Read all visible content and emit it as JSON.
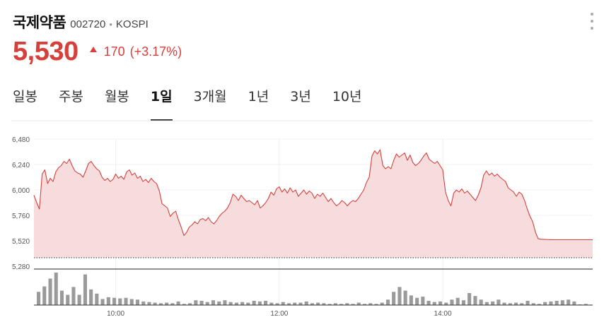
{
  "header": {
    "name": "국제약품",
    "code": "002720",
    "separator": "•",
    "exchange": "KOSPI"
  },
  "quote": {
    "price": "5,530",
    "direction": "up",
    "change": "170",
    "change_percent": "(+3.17%)",
    "up_color": "#d6403b"
  },
  "tabs": [
    {
      "label": "일봉",
      "active": false
    },
    {
      "label": "주봉",
      "active": false
    },
    {
      "label": "월봉",
      "active": false
    },
    {
      "label": "1일",
      "active": true
    },
    {
      "label": "3개월",
      "active": false
    },
    {
      "label": "1년",
      "active": false
    },
    {
      "label": "3년",
      "active": false
    },
    {
      "label": "10년",
      "active": false
    }
  ],
  "chart_data": {
    "type": "area",
    "y_ticks": [
      "6,480",
      "6,240",
      "6,000",
      "5,760",
      "5,520",
      "5,280"
    ],
    "ylim": [
      5280,
      6480
    ],
    "x_ticks": [
      {
        "label": "10:00",
        "minute": 60
      },
      {
        "label": "12:00",
        "minute": 180
      },
      {
        "label": "14:00",
        "minute": 300
      }
    ],
    "prev_close": 5360,
    "x_range_minutes": [
      0,
      410
    ],
    "series": [
      {
        "points": [
          [
            0,
            5950
          ],
          [
            2,
            5880
          ],
          [
            4,
            5820
          ],
          [
            6,
            6150
          ],
          [
            8,
            6190
          ],
          [
            10,
            6060
          ],
          [
            12,
            6110
          ],
          [
            14,
            6080
          ],
          [
            16,
            6170
          ],
          [
            18,
            6210
          ],
          [
            20,
            6230
          ],
          [
            22,
            6270
          ],
          [
            24,
            6250
          ],
          [
            26,
            6290
          ],
          [
            28,
            6230
          ],
          [
            30,
            6180
          ],
          [
            32,
            6160
          ],
          [
            34,
            6150
          ],
          [
            36,
            6120
          ],
          [
            38,
            6180
          ],
          [
            40,
            6250
          ],
          [
            42,
            6270
          ],
          [
            44,
            6230
          ],
          [
            46,
            6200
          ],
          [
            48,
            6180
          ],
          [
            50,
            6120
          ],
          [
            52,
            6090
          ],
          [
            54,
            6110
          ],
          [
            56,
            6080
          ],
          [
            58,
            6100
          ],
          [
            60,
            6150
          ],
          [
            62,
            6110
          ],
          [
            64,
            6130
          ],
          [
            66,
            6100
          ],
          [
            68,
            6170
          ],
          [
            70,
            6190
          ],
          [
            72,
            6140
          ],
          [
            74,
            6160
          ],
          [
            76,
            6110
          ],
          [
            78,
            6130
          ],
          [
            80,
            6080
          ],
          [
            82,
            6100
          ],
          [
            84,
            6070
          ],
          [
            86,
            6110
          ],
          [
            88,
            6080
          ],
          [
            90,
            6060
          ],
          [
            92,
            5990
          ],
          [
            94,
            5870
          ],
          [
            96,
            5850
          ],
          [
            98,
            5830
          ],
          [
            100,
            5750
          ],
          [
            102,
            5780
          ],
          [
            104,
            5800
          ],
          [
            106,
            5720
          ],
          [
            108,
            5650
          ],
          [
            110,
            5570
          ],
          [
            112,
            5600
          ],
          [
            114,
            5650
          ],
          [
            116,
            5670
          ],
          [
            118,
            5700
          ],
          [
            120,
            5680
          ],
          [
            122,
            5720
          ],
          [
            124,
            5730
          ],
          [
            126,
            5710
          ],
          [
            128,
            5740
          ],
          [
            130,
            5700
          ],
          [
            132,
            5680
          ],
          [
            134,
            5710
          ],
          [
            136,
            5750
          ],
          [
            138,
            5780
          ],
          [
            140,
            5800
          ],
          [
            142,
            5830
          ],
          [
            144,
            5880
          ],
          [
            146,
            5960
          ],
          [
            148,
            5940
          ],
          [
            150,
            5900
          ],
          [
            152,
            5950
          ],
          [
            154,
            5920
          ],
          [
            156,
            5890
          ],
          [
            158,
            5900
          ],
          [
            160,
            5880
          ],
          [
            162,
            5860
          ],
          [
            164,
            5900
          ],
          [
            166,
            5830
          ],
          [
            168,
            5850
          ],
          [
            170,
            5880
          ],
          [
            172,
            5920
          ],
          [
            174,
            5980
          ],
          [
            176,
            5950
          ],
          [
            178,
            6010
          ],
          [
            180,
            6030
          ],
          [
            182,
            5980
          ],
          [
            184,
            6010
          ],
          [
            186,
            5970
          ],
          [
            188,
            6020
          ],
          [
            190,
            5980
          ],
          [
            192,
            6000
          ],
          [
            194,
            5940
          ],
          [
            196,
            5970
          ],
          [
            198,
            6000
          ],
          [
            200,
            5960
          ],
          [
            202,
            5990
          ],
          [
            204,
            5970
          ],
          [
            206,
            5920
          ],
          [
            208,
            5960
          ],
          [
            210,
            5940
          ],
          [
            212,
            5970
          ],
          [
            214,
            5930
          ],
          [
            216,
            5890
          ],
          [
            218,
            5920
          ],
          [
            220,
            5880
          ],
          [
            222,
            5850
          ],
          [
            224,
            5870
          ],
          [
            226,
            5900
          ],
          [
            228,
            5880
          ],
          [
            230,
            5850
          ],
          [
            232,
            5880
          ],
          [
            234,
            5900
          ],
          [
            236,
            5890
          ],
          [
            238,
            5920
          ],
          [
            240,
            5960
          ],
          [
            242,
            6000
          ],
          [
            244,
            6070
          ],
          [
            246,
            6120
          ],
          [
            248,
            6320
          ],
          [
            250,
            6370
          ],
          [
            252,
            6340
          ],
          [
            254,
            6380
          ],
          [
            256,
            6230
          ],
          [
            258,
            6200
          ],
          [
            260,
            6220
          ],
          [
            262,
            6200
          ],
          [
            264,
            6280
          ],
          [
            266,
            6340
          ],
          [
            268,
            6310
          ],
          [
            270,
            6330
          ],
          [
            272,
            6350
          ],
          [
            274,
            6280
          ],
          [
            276,
            6330
          ],
          [
            278,
            6260
          ],
          [
            280,
            6230
          ],
          [
            282,
            6250
          ],
          [
            284,
            6280
          ],
          [
            286,
            6320
          ],
          [
            288,
            6350
          ],
          [
            290,
            6290
          ],
          [
            292,
            6270
          ],
          [
            294,
            6250
          ],
          [
            296,
            6270
          ],
          [
            298,
            6230
          ],
          [
            300,
            6190
          ],
          [
            302,
            5980
          ],
          [
            304,
            5900
          ],
          [
            306,
            5850
          ],
          [
            308,
            5970
          ],
          [
            310,
            6000
          ],
          [
            312,
            5980
          ],
          [
            314,
            6010
          ],
          [
            316,
            5970
          ],
          [
            318,
            5990
          ],
          [
            320,
            5960
          ],
          [
            322,
            5930
          ],
          [
            324,
            5900
          ],
          [
            326,
            5950
          ],
          [
            328,
            6020
          ],
          [
            330,
            6140
          ],
          [
            332,
            6180
          ],
          [
            334,
            6140
          ],
          [
            336,
            6160
          ],
          [
            338,
            6130
          ],
          [
            340,
            6150
          ],
          [
            342,
            6120
          ],
          [
            344,
            6100
          ],
          [
            346,
            6080
          ],
          [
            348,
            6020
          ],
          [
            350,
            6000
          ],
          [
            352,
            5980
          ],
          [
            354,
            5940
          ],
          [
            356,
            5980
          ],
          [
            358,
            5960
          ],
          [
            360,
            5900
          ],
          [
            362,
            5820
          ],
          [
            364,
            5750
          ],
          [
            366,
            5700
          ],
          [
            368,
            5600
          ],
          [
            370,
            5540
          ],
          [
            372,
            5535
          ],
          [
            380,
            5530
          ],
          [
            390,
            5530
          ],
          [
            410,
            5530
          ]
        ]
      }
    ],
    "volume": [
      22,
      31,
      44,
      54,
      24,
      17,
      30,
      17,
      51,
      26,
      19,
      10,
      13,
      12,
      11,
      12,
      10,
      9,
      6,
      5,
      4,
      3,
      4,
      3,
      6,
      2,
      3,
      8,
      7,
      5,
      8,
      6,
      8,
      5,
      4,
      5,
      4,
      7,
      6,
      7,
      4,
      3,
      5,
      3,
      4,
      4,
      6,
      3,
      4,
      3,
      2,
      3,
      2,
      3,
      2,
      4,
      2,
      3,
      2,
      4,
      9,
      22,
      30,
      24,
      16,
      12,
      14,
      7,
      5,
      6,
      4,
      9,
      12,
      8,
      20,
      15,
      9,
      5,
      6,
      9,
      4,
      3,
      4,
      3,
      7,
      3,
      2,
      5,
      6,
      7,
      8,
      9,
      6,
      1,
      2
    ]
  }
}
